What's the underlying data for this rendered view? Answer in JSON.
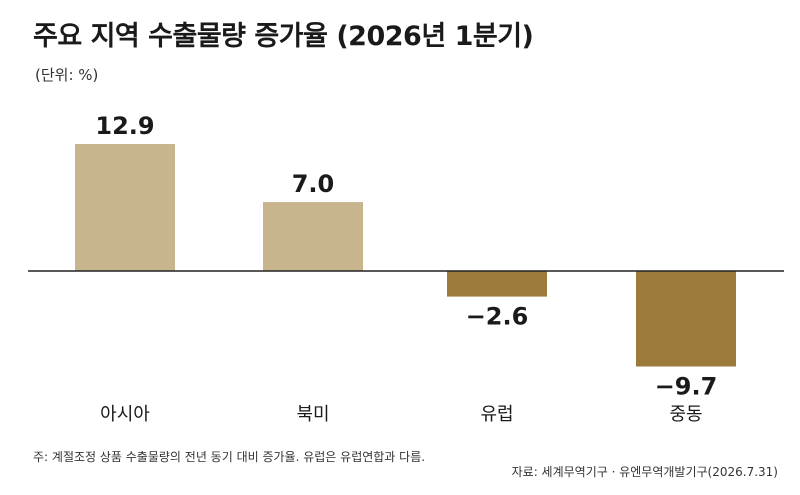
{
  "title": "주요 지역 수출물량 증가율 (2026년 1분기)",
  "unit_label": "(단위: %)",
  "note": "주: 계절조정 상품 수출물량의 전년 동기 대비 증가율. 유럽은 유럽연합과 다름.",
  "source": "자료: 세계무역기구 · 유엔무역개발기구(2026.7.31)",
  "colors": {
    "positive": "#c8b58d",
    "negative": "#9c7a3c",
    "baseline": "#222222"
  },
  "chart_data": {
    "type": "bar",
    "title": "주요 지역 수출물량 증가율 (2026년 1분기)",
    "ylabel": "(단위: %)",
    "categories": [
      "아시아",
      "북미",
      "유럽",
      "중동"
    ],
    "values": [
      12.9,
      7.0,
      -2.6,
      -9.7
    ],
    "value_labels": [
      "12.9",
      "7.0",
      "−2.6",
      "−9.7"
    ],
    "ylim": [
      -12,
      14
    ],
    "grid": false,
    "legend": "none"
  }
}
